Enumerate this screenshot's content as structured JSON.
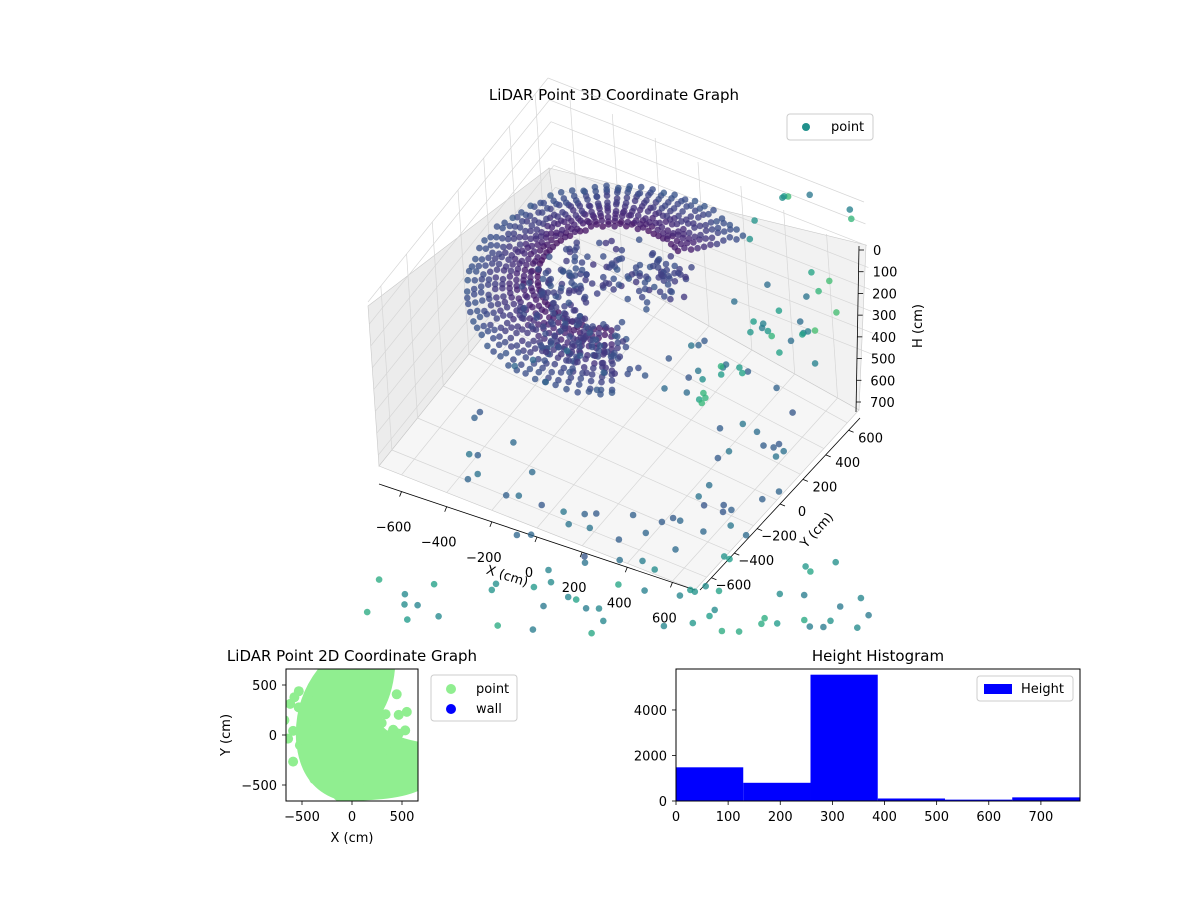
{
  "chart_data": [
    {
      "type": "scatter",
      "dimensions": 3,
      "title": "LiDAR Point 3D Coordinate Graph",
      "xlabel": "X (cm)",
      "ylabel": "Y (cm)",
      "zlabel": "H (cm)",
      "xlim": [
        -700,
        700
      ],
      "ylim": [
        -700,
        700
      ],
      "zlim": [
        750,
        0
      ],
      "xticks": [
        "−600",
        "−400",
        "−200",
        "0",
        "200",
        "400",
        "600"
      ],
      "yticks": [
        "−600",
        "−400",
        "−200",
        "0",
        "200",
        "400",
        "600"
      ],
      "zticks": [
        "0",
        "100",
        "200",
        "300",
        "400",
        "500",
        "600",
        "700"
      ],
      "z_inverted": true,
      "grid": true,
      "legend": {
        "placement": "top-right",
        "entries": [
          "point"
        ]
      },
      "colormap": "viridis",
      "series": [
        {
          "name": "point",
          "color": "#21918c",
          "description_points": [
            {
              "x": -500,
              "y": -600,
              "z": 80
            },
            {
              "x": -300,
              "y": -500,
              "z": 60
            },
            {
              "x": -100,
              "y": -550,
              "z": 100
            },
            {
              "x": 100,
              "y": -600,
              "z": 70
            },
            {
              "x": 300,
              "y": -500,
              "z": 90
            },
            {
              "x": 500,
              "y": -450,
              "z": 50
            },
            {
              "x": 600,
              "y": -300,
              "z": 120
            },
            {
              "x": 600,
              "y": 0,
              "z": 80
            },
            {
              "x": 550,
              "y": 300,
              "z": 60
            },
            {
              "x": 400,
              "y": 550,
              "z": 40
            },
            {
              "x": -400,
              "y": 400,
              "z": 300
            },
            {
              "x": 0,
              "y": 0,
              "z": 310
            }
          ]
        }
      ]
    },
    {
      "type": "scatter",
      "dimensions": 2,
      "title": "LiDAR Point 2D Coordinate Graph",
      "xlabel": "X (cm)",
      "ylabel": "Y (cm)",
      "xlim": [
        -660,
        660
      ],
      "ylim": [
        -660,
        660
      ],
      "xticks": [
        -500,
        0,
        500
      ],
      "yticks": [
        -500,
        0,
        500
      ],
      "legend": {
        "placement": "outside-right",
        "entries": [
          "point",
          "wall"
        ]
      },
      "series": [
        {
          "name": "point",
          "color": "#90ee90"
        },
        {
          "name": "wall",
          "color": "#0000ff",
          "points": []
        }
      ]
    },
    {
      "type": "bar",
      "subtype": "histogram",
      "title": "Height Histogram",
      "xlim": [
        0,
        775
      ],
      "ylim": [
        0,
        5800
      ],
      "xticks": [
        0,
        100,
        200,
        300,
        400,
        500,
        600,
        700
      ],
      "yticks": [
        0,
        2000,
        4000
      ],
      "legend": {
        "placement": "top-right",
        "entries": [
          "Height"
        ]
      },
      "series": [
        {
          "name": "Height",
          "color": "#0000ff",
          "bins": [
            {
              "from": 0,
              "to": 129,
              "count": 1480
            },
            {
              "from": 129,
              "to": 258,
              "count": 800
            },
            {
              "from": 258,
              "to": 387,
              "count": 5550
            },
            {
              "from": 387,
              "to": 516,
              "count": 110
            },
            {
              "from": 516,
              "to": 645,
              "count": 60
            },
            {
              "from": 645,
              "to": 775,
              "count": 160
            }
          ]
        }
      ]
    }
  ]
}
